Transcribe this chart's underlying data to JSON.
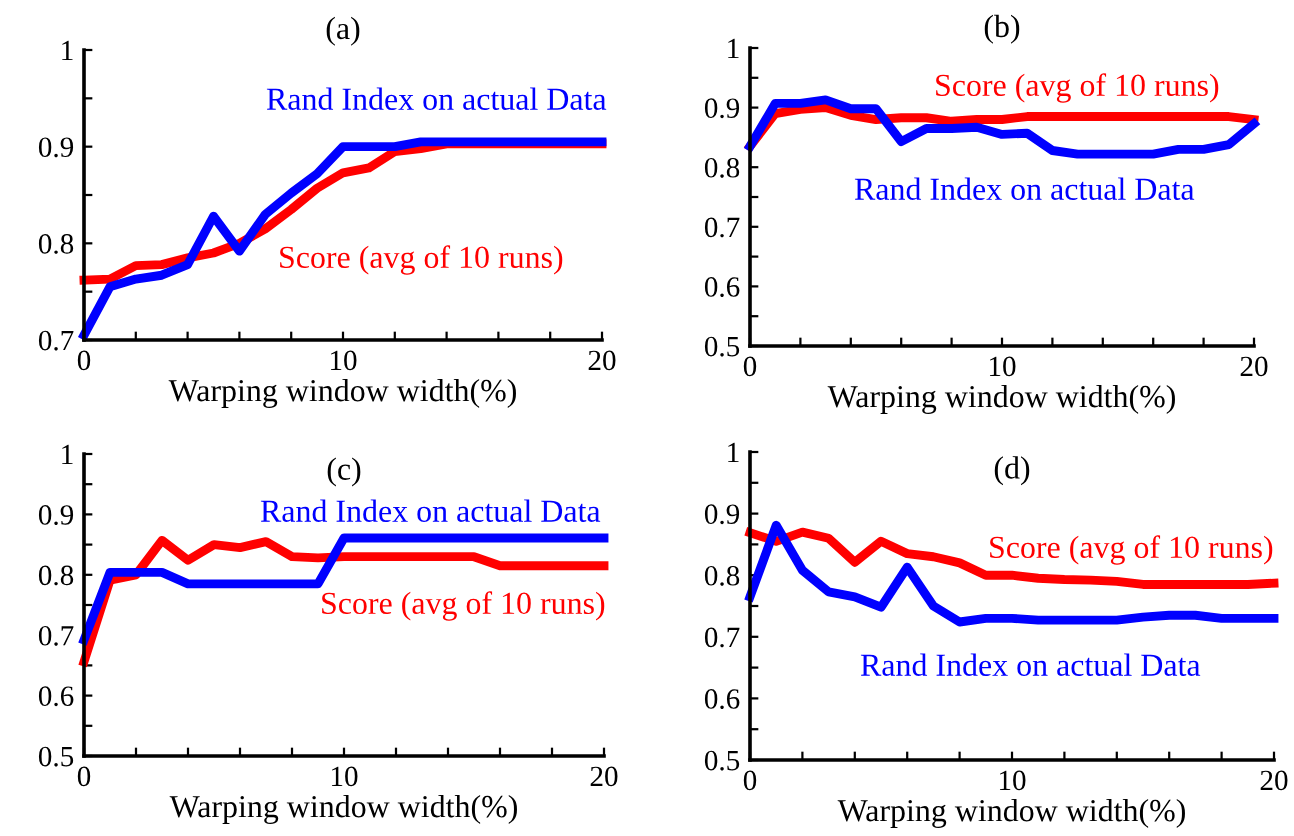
{
  "chart_data": [
    {
      "type": "line",
      "title": "(a)",
      "xlabel": "Warping window width(%)",
      "xlim": [
        0,
        20
      ],
      "ylim": [
        0.7,
        1
      ],
      "xticks": [
        0,
        {
          "value": 2,
          "label": null
        },
        {
          "value": 4,
          "label": null
        },
        {
          "value": 6,
          "label": null
        },
        {
          "value": 8,
          "label": null
        },
        10,
        {
          "value": 12,
          "label": null
        },
        {
          "value": 14,
          "label": null
        },
        {
          "value": 16,
          "label": null
        },
        {
          "value": 18,
          "label": null
        },
        20
      ],
      "yticks": [
        {
          "value": 0.7,
          "label": "0.7"
        },
        {
          "value": 0.75,
          "label": null
        },
        {
          "value": 0.8,
          "label": "0.8"
        },
        {
          "value": 0.85,
          "label": null
        },
        {
          "value": 0.9,
          "label": "0.9"
        },
        {
          "value": 0.95,
          "label": null
        },
        {
          "value": 1,
          "label": "1"
        }
      ],
      "x": [
        0,
        1,
        2,
        3,
        4,
        5,
        6,
        7,
        8,
        9,
        10,
        11,
        12,
        13,
        14,
        15,
        16,
        17,
        18,
        19,
        20
      ],
      "grid": false,
      "legend": false,
      "series": [
        {
          "name": "Score (avg of 10 runs)",
          "color": "#ff0000",
          "values": [
            0.762,
            0.763,
            0.777,
            0.778,
            0.785,
            0.79,
            0.8,
            0.815,
            0.835,
            0.857,
            0.873,
            0.878,
            0.895,
            0.898,
            0.903,
            0.903,
            0.903,
            0.903,
            0.903,
            0.903,
            0.903
          ]
        },
        {
          "name": "Rand Index on actual Data",
          "color": "#0000ff",
          "values": [
            0.705,
            0.755,
            0.763,
            0.767,
            0.778,
            0.828,
            0.792,
            0.83,
            0.852,
            0.872,
            0.9,
            0.9,
            0.9,
            0.905,
            0.905,
            0.905,
            0.905,
            0.905,
            0.905,
            0.905,
            0.905
          ]
        }
      ]
    },
    {
      "type": "line",
      "title": "(b)",
      "xlabel": "Warping window width(%)",
      "xlim": [
        0,
        20
      ],
      "ylim": [
        0.5,
        1
      ],
      "xticks": [
        0,
        {
          "value": 2,
          "label": null
        },
        {
          "value": 4,
          "label": null
        },
        {
          "value": 6,
          "label": null
        },
        {
          "value": 8,
          "label": null
        },
        10,
        {
          "value": 12,
          "label": null
        },
        {
          "value": 14,
          "label": null
        },
        {
          "value": 16,
          "label": null
        },
        {
          "value": 18,
          "label": null
        },
        20
      ],
      "yticks": [
        {
          "value": 0.5,
          "label": "0.5"
        },
        {
          "value": 0.55,
          "label": null
        },
        {
          "value": 0.6,
          "label": "0.6"
        },
        {
          "value": 0.65,
          "label": null
        },
        {
          "value": 0.7,
          "label": "0.7"
        },
        {
          "value": 0.75,
          "label": null
        },
        {
          "value": 0.8,
          "label": "0.8"
        },
        {
          "value": 0.85,
          "label": null
        },
        {
          "value": 0.9,
          "label": "0.9"
        },
        {
          "value": 0.95,
          "label": null
        },
        {
          "value": 1,
          "label": "1"
        }
      ],
      "x": [
        0,
        1,
        2,
        3,
        4,
        5,
        6,
        7,
        8,
        9,
        10,
        11,
        12,
        13,
        14,
        15,
        16,
        17,
        18,
        19,
        20
      ],
      "grid": false,
      "legend": false,
      "series": [
        {
          "name": "Score (avg of 10 runs)",
          "color": "#ff0000",
          "values": [
            0.835,
            0.89,
            0.897,
            0.9,
            0.887,
            0.88,
            0.883,
            0.883,
            0.877,
            0.88,
            0.88,
            0.885,
            0.885,
            0.885,
            0.885,
            0.885,
            0.885,
            0.885,
            0.885,
            0.885,
            0.88
          ]
        },
        {
          "name": "Rand Index on actual Data",
          "color": "#0000ff",
          "values": [
            0.835,
            0.907,
            0.907,
            0.913,
            0.898,
            0.898,
            0.843,
            0.865,
            0.865,
            0.867,
            0.855,
            0.857,
            0.828,
            0.822,
            0.822,
            0.822,
            0.822,
            0.83,
            0.83,
            0.838,
            0.873
          ]
        }
      ]
    },
    {
      "type": "line",
      "title": "(c)",
      "xlabel": "Warping window width(%)",
      "xlim": [
        0,
        20
      ],
      "ylim": [
        0.5,
        1
      ],
      "xticks": [
        0,
        {
          "value": 2,
          "label": null
        },
        {
          "value": 4,
          "label": null
        },
        {
          "value": 6,
          "label": null
        },
        {
          "value": 8,
          "label": null
        },
        10,
        {
          "value": 12,
          "label": null
        },
        {
          "value": 14,
          "label": null
        },
        {
          "value": 16,
          "label": null
        },
        {
          "value": 18,
          "label": null
        },
        20
      ],
      "yticks": [
        {
          "value": 0.5,
          "label": "0.5"
        },
        {
          "value": 0.55,
          "label": null
        },
        {
          "value": 0.6,
          "label": "0.6"
        },
        {
          "value": 0.65,
          "label": null
        },
        {
          "value": 0.7,
          "label": "0.7"
        },
        {
          "value": 0.75,
          "label": null
        },
        {
          "value": 0.8,
          "label": "0.8"
        },
        {
          "value": 0.85,
          "label": null
        },
        {
          "value": 0.9,
          "label": "0.9"
        },
        {
          "value": 0.95,
          "label": null
        },
        {
          "value": 1,
          "label": "1"
        }
      ],
      "x": [
        0,
        1,
        2,
        3,
        4,
        5,
        6,
        7,
        8,
        9,
        10,
        11,
        12,
        13,
        14,
        15,
        16,
        17,
        18,
        19,
        20
      ],
      "grid": false,
      "legend": false,
      "series": [
        {
          "name": "Score (avg of 10 runs)",
          "color": "#ff0000",
          "values": [
            0.656,
            0.791,
            0.8,
            0.857,
            0.824,
            0.85,
            0.845,
            0.855,
            0.83,
            0.828,
            0.83,
            0.83,
            0.83,
            0.83,
            0.83,
            0.83,
            0.815,
            0.815,
            0.815,
            0.815,
            0.815
          ]
        },
        {
          "name": "Rand Index on actual Data",
          "color": "#0000ff",
          "values": [
            0.692,
            0.804,
            0.804,
            0.804,
            0.785,
            0.785,
            0.785,
            0.785,
            0.785,
            0.785,
            0.861,
            0.861,
            0.861,
            0.861,
            0.861,
            0.861,
            0.861,
            0.861,
            0.861,
            0.861,
            0.861
          ]
        }
      ]
    },
    {
      "type": "line",
      "title": "(d)",
      "xlabel": "Warping window width(%)",
      "xlim": [
        0,
        20
      ],
      "ylim": [
        0.5,
        1
      ],
      "xticks": [
        0,
        {
          "value": 2,
          "label": null
        },
        {
          "value": 4,
          "label": null
        },
        {
          "value": 6,
          "label": null
        },
        {
          "value": 8,
          "label": null
        },
        10,
        {
          "value": 12,
          "label": null
        },
        {
          "value": 14,
          "label": null
        },
        {
          "value": 16,
          "label": null
        },
        {
          "value": 18,
          "label": null
        },
        20
      ],
      "yticks": [
        {
          "value": 0.5,
          "label": "0.5"
        },
        {
          "value": 0.55,
          "label": null
        },
        {
          "value": 0.6,
          "label": "0.6"
        },
        {
          "value": 0.65,
          "label": null
        },
        {
          "value": 0.7,
          "label": "0.7"
        },
        {
          "value": 0.75,
          "label": null
        },
        {
          "value": 0.8,
          "label": "0.8"
        },
        {
          "value": 0.85,
          "label": null
        },
        {
          "value": 0.9,
          "label": "0.9"
        },
        {
          "value": 0.95,
          "label": null
        },
        {
          "value": 1,
          "label": "1"
        }
      ],
      "x": [
        0,
        1,
        2,
        3,
        4,
        5,
        6,
        7,
        8,
        9,
        10,
        11,
        12,
        13,
        14,
        15,
        16,
        17,
        18,
        19,
        20
      ],
      "grid": false,
      "legend": false,
      "series": [
        {
          "name": "Score (avg of 10 runs)",
          "color": "#ff0000",
          "values": [
            0.869,
            0.855,
            0.87,
            0.86,
            0.821,
            0.855,
            0.835,
            0.83,
            0.82,
            0.8,
            0.8,
            0.795,
            0.793,
            0.792,
            0.79,
            0.785,
            0.785,
            0.785,
            0.785,
            0.785,
            0.787
          ]
        },
        {
          "name": "Rand Index on actual Data",
          "color": "#0000ff",
          "values": [
            0.765,
            0.881,
            0.808,
            0.773,
            0.765,
            0.748,
            0.813,
            0.75,
            0.724,
            0.73,
            0.73,
            0.727,
            0.727,
            0.727,
            0.727,
            0.732,
            0.735,
            0.735,
            0.73,
            0.73,
            0.73
          ]
        }
      ]
    }
  ]
}
